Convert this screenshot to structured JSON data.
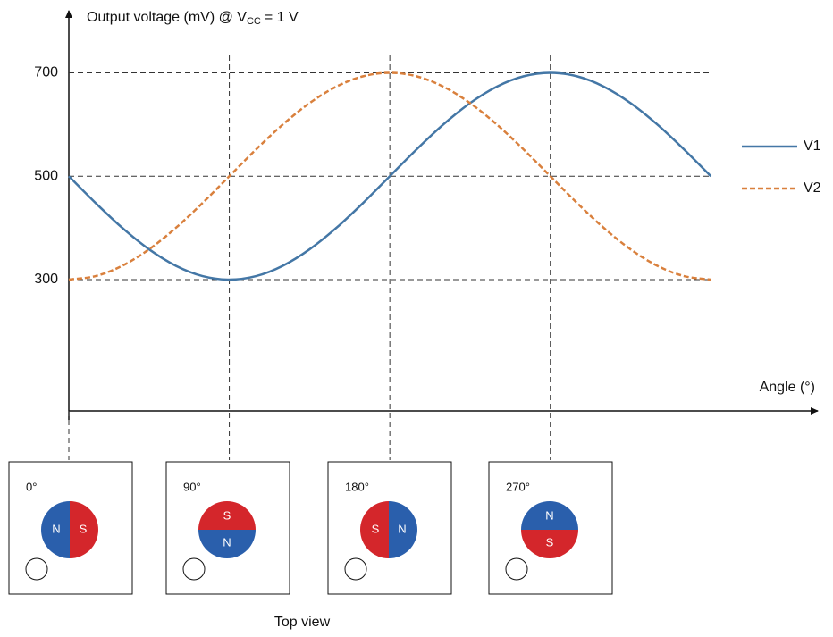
{
  "chart_data": {
    "type": "line",
    "y_label": {
      "text": "Output voltage (mV) @ V",
      "sub": "CC",
      "tail": "= 1 V"
    },
    "x_label": "Angle (°)",
    "x": [
      0,
      15,
      30,
      45,
      60,
      75,
      90,
      105,
      120,
      135,
      150,
      165,
      180,
      195,
      210,
      225,
      240,
      255,
      270,
      285,
      300,
      315,
      330,
      345,
      360
    ],
    "series": [
      {
        "name": "V1",
        "color": "#4477a6",
        "dashed": false,
        "values": [
          500,
          448.2,
          400,
          358.6,
          326.8,
          306.8,
          300,
          306.8,
          326.8,
          358.6,
          400,
          448.2,
          500,
          551.8,
          600,
          641.4,
          673.2,
          693.2,
          700,
          693.2,
          673.2,
          641.4,
          600,
          551.8,
          500
        ]
      },
      {
        "name": "V2",
        "color": "#d9803d",
        "dashed": true,
        "values": [
          300,
          306.8,
          326.8,
          358.6,
          400,
          448.2,
          500,
          551.8,
          600,
          641.4,
          673.2,
          693.2,
          700,
          693.2,
          673.2,
          641.4,
          600,
          551.8,
          500,
          448.2,
          400,
          358.6,
          326.8,
          306.8,
          300
        ]
      }
    ],
    "xlim": [
      0,
      420
    ],
    "xticks": [
      0,
      90,
      180,
      270
    ],
    "ylim": [
      46,
      820
    ],
    "yticks": [
      300,
      500,
      700
    ],
    "grid": true,
    "legend": "right"
  },
  "panels": [
    {
      "label": "0°",
      "north": "N",
      "south": "S"
    },
    {
      "label": "90°",
      "north": "N",
      "south": "S"
    },
    {
      "label": "180°",
      "north": "N",
      "south": "S"
    },
    {
      "label": "270°",
      "north": "N",
      "south": "S"
    }
  ],
  "caption": "Top view"
}
